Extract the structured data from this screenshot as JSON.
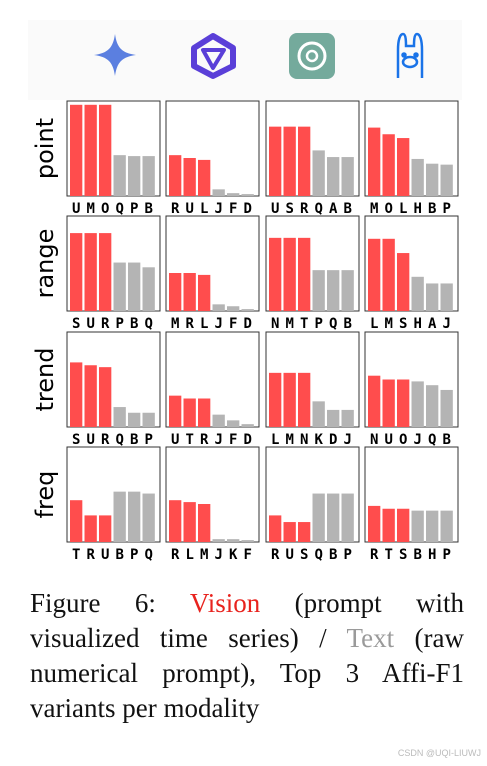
{
  "row_labels": [
    "point",
    "range",
    "trend",
    "freq"
  ],
  "caption": {
    "prefix": "Figure 6:",
    "vision": "Vision",
    "middle": "(prompt with visualized time series) /",
    "text": "Text",
    "suffix": "(raw numerical prompt), Top 3 Affi-F1 variants per modality"
  },
  "watermark": "CSDN @UQI-LIUWJ",
  "chart_data": [
    {
      "type": "bar",
      "categories": [
        "U",
        "M",
        "O",
        "Q",
        "P",
        "B"
      ],
      "values": [
        96,
        96,
        96,
        43,
        42,
        42
      ],
      "ylim": [
        0,
        100
      ],
      "colors": [
        "#ff4d4d",
        "#ff4d4d",
        "#ff4d4d",
        "#b4b4b4",
        "#b4b4b4",
        "#b4b4b4"
      ]
    },
    {
      "type": "bar",
      "categories": [
        "R",
        "U",
        "L",
        "J",
        "F",
        "D"
      ],
      "values": [
        43,
        40,
        38,
        7,
        3,
        2
      ],
      "ylim": [
        0,
        100
      ],
      "colors": [
        "#ff4d4d",
        "#ff4d4d",
        "#ff4d4d",
        "#b4b4b4",
        "#b4b4b4",
        "#b4b4b4"
      ]
    },
    {
      "type": "bar",
      "categories": [
        "U",
        "S",
        "R",
        "Q",
        "A",
        "B"
      ],
      "values": [
        73,
        73,
        73,
        48,
        41,
        41
      ],
      "ylim": [
        0,
        100
      ],
      "colors": [
        "#ff4d4d",
        "#ff4d4d",
        "#ff4d4d",
        "#b4b4b4",
        "#b4b4b4",
        "#b4b4b4"
      ]
    },
    {
      "type": "bar",
      "categories": [
        "M",
        "O",
        "L",
        "H",
        "B",
        "P"
      ],
      "values": [
        72,
        65,
        61,
        39,
        34,
        33
      ],
      "ylim": [
        0,
        100
      ],
      "colors": [
        "#ff4d4d",
        "#ff4d4d",
        "#ff4d4d",
        "#b4b4b4",
        "#b4b4b4",
        "#b4b4b4"
      ]
    },
    {
      "type": "bar",
      "categories": [
        "S",
        "U",
        "R",
        "P",
        "B",
        "Q"
      ],
      "values": [
        82,
        82,
        82,
        51,
        51,
        46
      ],
      "ylim": [
        0,
        100
      ],
      "colors": [
        "#ff4d4d",
        "#ff4d4d",
        "#ff4d4d",
        "#b4b4b4",
        "#b4b4b4",
        "#b4b4b4"
      ]
    },
    {
      "type": "bar",
      "categories": [
        "M",
        "R",
        "L",
        "J",
        "F",
        "D"
      ],
      "values": [
        40,
        40,
        38,
        7,
        5,
        2
      ],
      "ylim": [
        0,
        100
      ],
      "colors": [
        "#ff4d4d",
        "#ff4d4d",
        "#ff4d4d",
        "#b4b4b4",
        "#b4b4b4",
        "#b4b4b4"
      ]
    },
    {
      "type": "bar",
      "categories": [
        "N",
        "M",
        "T",
        "P",
        "Q",
        "B"
      ],
      "values": [
        77,
        77,
        77,
        43,
        43,
        43
      ],
      "ylim": [
        0,
        100
      ],
      "colors": [
        "#ff4d4d",
        "#ff4d4d",
        "#ff4d4d",
        "#b4b4b4",
        "#b4b4b4",
        "#b4b4b4"
      ]
    },
    {
      "type": "bar",
      "categories": [
        "L",
        "M",
        "S",
        "H",
        "A",
        "J"
      ],
      "values": [
        76,
        76,
        61,
        36,
        29,
        29
      ],
      "ylim": [
        0,
        100
      ],
      "colors": [
        "#ff4d4d",
        "#ff4d4d",
        "#ff4d4d",
        "#b4b4b4",
        "#b4b4b4",
        "#b4b4b4"
      ]
    },
    {
      "type": "bar",
      "categories": [
        "S",
        "U",
        "R",
        "Q",
        "B",
        "P"
      ],
      "values": [
        68,
        65,
        63,
        21,
        15,
        15
      ],
      "ylim": [
        0,
        100
      ],
      "colors": [
        "#ff4d4d",
        "#ff4d4d",
        "#ff4d4d",
        "#b4b4b4",
        "#b4b4b4",
        "#b4b4b4"
      ]
    },
    {
      "type": "bar",
      "categories": [
        "U",
        "T",
        "R",
        "J",
        "F",
        "D"
      ],
      "values": [
        33,
        30,
        30,
        13,
        7,
        3
      ],
      "ylim": [
        0,
        100
      ],
      "colors": [
        "#ff4d4d",
        "#ff4d4d",
        "#ff4d4d",
        "#b4b4b4",
        "#b4b4b4",
        "#b4b4b4"
      ]
    },
    {
      "type": "bar",
      "categories": [
        "L",
        "M",
        "N",
        "K",
        "D",
        "J"
      ],
      "values": [
        57,
        57,
        57,
        27,
        18,
        18
      ],
      "ylim": [
        0,
        100
      ],
      "colors": [
        "#ff4d4d",
        "#ff4d4d",
        "#ff4d4d",
        "#b4b4b4",
        "#b4b4b4",
        "#b4b4b4"
      ]
    },
    {
      "type": "bar",
      "categories": [
        "N",
        "U",
        "O",
        "J",
        "Q",
        "B"
      ],
      "values": [
        54,
        50,
        50,
        48,
        44,
        39
      ],
      "ylim": [
        0,
        100
      ],
      "colors": [
        "#ff4d4d",
        "#ff4d4d",
        "#ff4d4d",
        "#b4b4b4",
        "#b4b4b4",
        "#b4b4b4"
      ]
    },
    {
      "type": "bar",
      "categories": [
        "T",
        "R",
        "U",
        "B",
        "P",
        "Q"
      ],
      "values": [
        44,
        28,
        28,
        53,
        53,
        51
      ],
      "ylim": [
        0,
        100
      ],
      "colors": [
        "#ff4d4d",
        "#ff4d4d",
        "#ff4d4d",
        "#b4b4b4",
        "#b4b4b4",
        "#b4b4b4"
      ]
    },
    {
      "type": "bar",
      "categories": [
        "R",
        "L",
        "M",
        "J",
        "K",
        "F"
      ],
      "values": [
        44,
        42,
        40,
        3,
        3,
        2
      ],
      "ylim": [
        0,
        100
      ],
      "colors": [
        "#ff4d4d",
        "#ff4d4d",
        "#ff4d4d",
        "#b4b4b4",
        "#b4b4b4",
        "#b4b4b4"
      ]
    },
    {
      "type": "bar",
      "categories": [
        "R",
        "U",
        "S",
        "Q",
        "B",
        "P"
      ],
      "values": [
        28,
        21,
        21,
        51,
        51,
        51
      ],
      "ylim": [
        0,
        100
      ],
      "colors": [
        "#ff4d4d",
        "#ff4d4d",
        "#ff4d4d",
        "#b4b4b4",
        "#b4b4b4",
        "#b4b4b4"
      ]
    },
    {
      "type": "bar",
      "categories": [
        "R",
        "T",
        "S",
        "B",
        "H",
        "P"
      ],
      "values": [
        38,
        35,
        35,
        33,
        33,
        33
      ],
      "ylim": [
        0,
        100
      ],
      "colors": [
        "#ff4d4d",
        "#ff4d4d",
        "#ff4d4d",
        "#b4b4b4",
        "#b4b4b4",
        "#b4b4b4"
      ]
    }
  ]
}
